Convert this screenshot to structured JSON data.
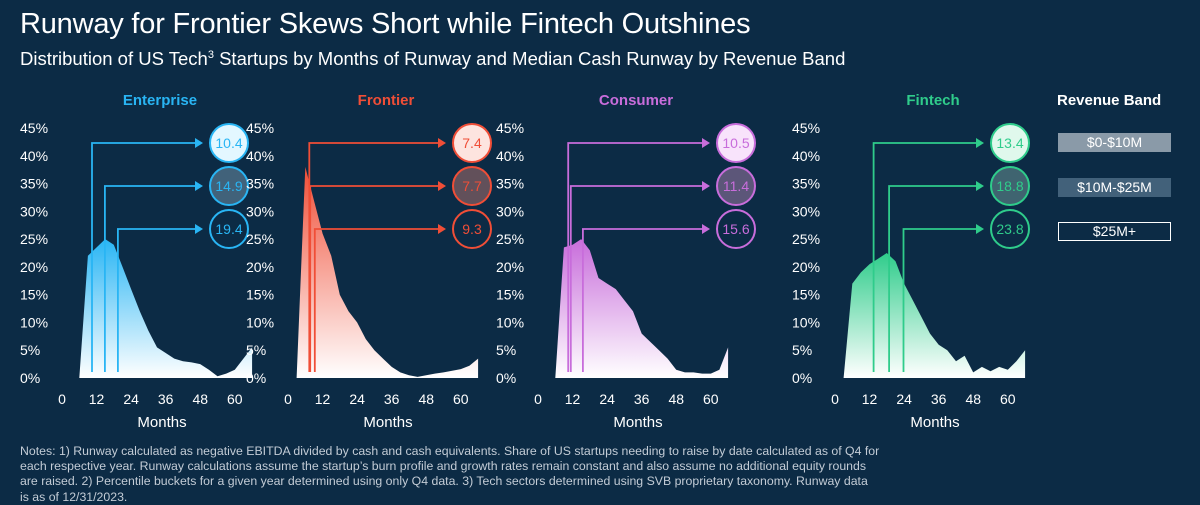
{
  "title": "Runway for Frontier Skews Short while Fintech Outshines",
  "subtitle_main": "Distribution of US Tech",
  "subtitle_sup": "3",
  "subtitle_rest": " Startups by Months of Runway and Median Cash Runway by Revenue Band",
  "legend": {
    "title": "Revenue Band",
    "items": [
      "$0-$10M",
      "$10M-$25M",
      "$25M+"
    ]
  },
  "notes": "Notes: 1) Runway calculated as negative EBITDA divided by cash and cash equivalents. Share of US startups needing to raise by date calculated as of Q4 for each respective year. Runway calculations assume the startup’s burn profile and growth rates remain constant and also assume no additional equity rounds are raised. 2) Percentile buckets for a given year determined using only Q4 data. 3) Tech sectors determined using SVB proprietary taxonomy. Runway data is as of 12/31/2023.",
  "chart_data": [
    {
      "type": "area",
      "title": "Enterprise",
      "color": "#29b5f4",
      "xlabel": "Months",
      "ylabel": "",
      "ylim": [
        0,
        45
      ],
      "xlim": [
        0,
        66
      ],
      "yticks": [
        "0%",
        "5%",
        "10%",
        "15%",
        "20%",
        "25%",
        "30%",
        "35%",
        "40%",
        "45%"
      ],
      "xticks": [
        0,
        12,
        24,
        36,
        48,
        60
      ],
      "x": [
        6,
        9,
        12,
        15,
        18,
        21,
        24,
        27,
        30,
        33,
        36,
        39,
        42,
        45,
        48,
        51,
        54,
        57,
        60,
        63,
        66
      ],
      "values": [
        0,
        22,
        23.5,
        25,
        24,
        20,
        16,
        12,
        8.5,
        5.5,
        4.5,
        3.5,
        3,
        2.8,
        2.5,
        1.5,
        0.3,
        0.8,
        1.5,
        3.5,
        5.5
      ],
      "median_runway": [
        {
          "band": "$0-$10M",
          "months": 10.4
        },
        {
          "band": "$10M-$25M",
          "months": 14.9
        },
        {
          "band": "$25M+",
          "months": 19.4
        }
      ]
    },
    {
      "type": "area",
      "title": "Frontier",
      "color": "#f04e37",
      "xlabel": "Months",
      "ylabel": "",
      "ylim": [
        0,
        45
      ],
      "xlim": [
        0,
        66
      ],
      "yticks": [
        "0%",
        "5%",
        "10%",
        "15%",
        "20%",
        "25%",
        "30%",
        "35%",
        "40%",
        "45%"
      ],
      "xticks": [
        0,
        12,
        24,
        36,
        48,
        60
      ],
      "x": [
        3,
        6,
        9,
        12,
        15,
        18,
        21,
        24,
        27,
        30,
        33,
        36,
        39,
        42,
        45,
        48,
        51,
        54,
        57,
        60,
        63,
        66
      ],
      "values": [
        0,
        38,
        32,
        26,
        22,
        15,
        12,
        10,
        7,
        5,
        3.5,
        2,
        1,
        0.5,
        0.2,
        0.5,
        0.8,
        1,
        1.3,
        1.6,
        2.2,
        3.5
      ],
      "median_runway": [
        {
          "band": "$0-$10M",
          "months": 7.4
        },
        {
          "band": "$10M-$25M",
          "months": 7.7
        },
        {
          "band": "$25M+",
          "months": 9.3
        }
      ]
    },
    {
      "type": "area",
      "title": "Consumer",
      "color": "#c86ddb",
      "xlabel": "Months",
      "ylabel": "",
      "ylim": [
        0,
        45
      ],
      "xlim": [
        0,
        66
      ],
      "yticks": [
        "0%",
        "5%",
        "10%",
        "15%",
        "20%",
        "25%",
        "30%",
        "35%",
        "40%",
        "45%"
      ],
      "xticks": [
        0,
        12,
        24,
        36,
        48,
        60
      ],
      "x": [
        6,
        9,
        12,
        15,
        18,
        21,
        24,
        27,
        30,
        33,
        36,
        39,
        42,
        45,
        48,
        51,
        54,
        57,
        60,
        63,
        66
      ],
      "values": [
        0,
        23.5,
        24,
        25,
        23,
        18,
        17,
        16,
        14,
        12,
        8,
        6.5,
        5,
        3.5,
        1.5,
        1,
        1,
        0.8,
        0.8,
        1.5,
        5.5
      ],
      "median_runway": [
        {
          "band": "$0-$10M",
          "months": 10.5
        },
        {
          "band": "$10M-$25M",
          "months": 11.4
        },
        {
          "band": "$25M+",
          "months": 15.6
        }
      ]
    },
    {
      "type": "area",
      "title": "Fintech",
      "color": "#2fcc8b",
      "xlabel": "Months",
      "ylabel": "",
      "ylim": [
        0,
        45
      ],
      "xlim": [
        0,
        66
      ],
      "yticks": [
        "0%",
        "5%",
        "10%",
        "15%",
        "20%",
        "25%",
        "30%",
        "35%",
        "40%",
        "45%"
      ],
      "xticks": [
        0,
        12,
        24,
        36,
        48,
        60
      ],
      "x": [
        3,
        6,
        9,
        12,
        15,
        18,
        21,
        24,
        27,
        30,
        33,
        36,
        39,
        42,
        45,
        48,
        51,
        54,
        57,
        60,
        63,
        66
      ],
      "values": [
        0,
        17,
        19,
        20.5,
        21.5,
        22.5,
        21,
        17,
        14,
        11,
        8,
        6,
        5,
        3,
        4,
        1,
        2,
        1.2,
        2,
        1.5,
        3,
        5
      ],
      "median_runway": [
        {
          "band": "$0-$10M",
          "months": 13.4
        },
        {
          "band": "$10M-$25M",
          "months": 18.8
        },
        {
          "band": "$25M+",
          "months": 23.8
        }
      ]
    }
  ]
}
